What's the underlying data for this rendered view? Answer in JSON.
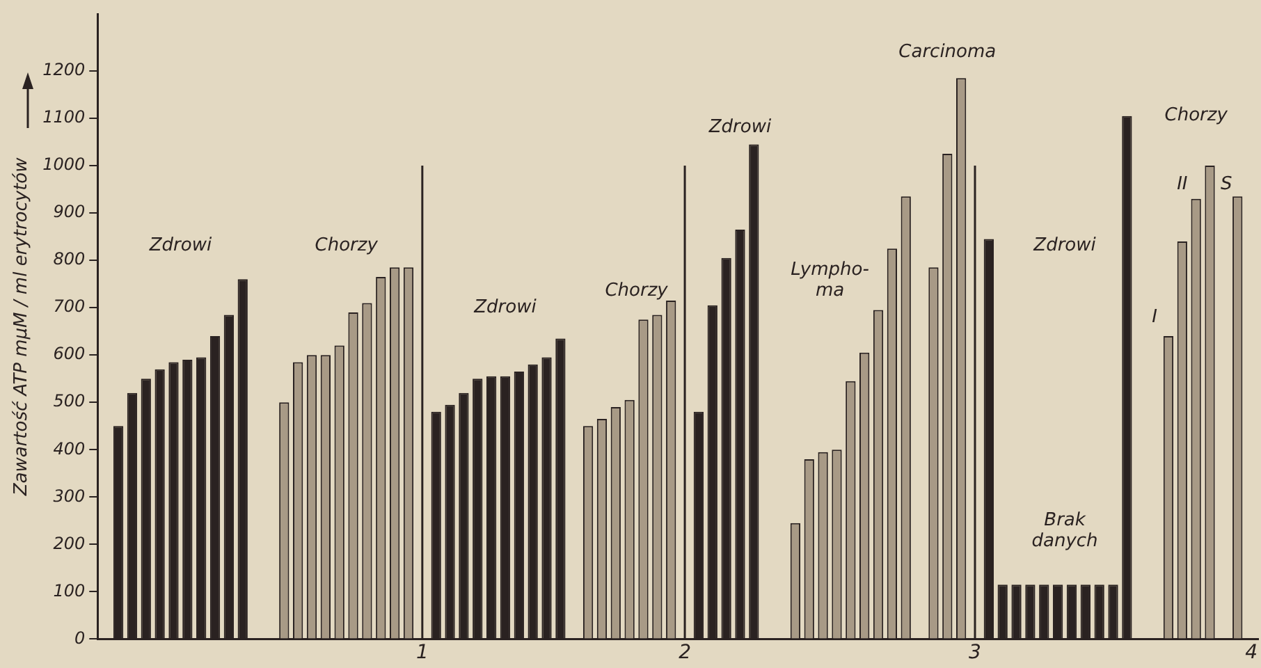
{
  "chart_data": {
    "type": "bar",
    "ylabel": "Zawartość ATP mμM / ml erytrocytów",
    "categories": [
      null,
      null,
      null,
      null,
      null,
      null,
      null,
      null,
      null,
      null,
      null,
      null,
      null,
      null,
      null,
      null,
      null,
      null,
      null,
      null,
      null,
      null,
      null,
      "1",
      null,
      null,
      null,
      null,
      null,
      null,
      null,
      null,
      null,
      null,
      null,
      null,
      null,
      null,
      null,
      null,
      null,
      null,
      "2",
      null,
      null,
      null,
      null,
      null,
      null,
      null,
      null,
      null,
      null,
      null,
      null,
      null,
      null,
      null,
      null,
      null,
      null,
      null,
      null,
      "3",
      null,
      null,
      null,
      null,
      null,
      null,
      null,
      null,
      null,
      null,
      null,
      null,
      null,
      null,
      null,
      null,
      null,
      null,
      null,
      "4"
    ],
    "series": [
      {
        "color": "#2a2221",
        "values": [
          null,
          450,
          520,
          550,
          570,
          585,
          590,
          595,
          640,
          685,
          760,
          null,
          null,
          null,
          null,
          null,
          null,
          null,
          null,
          null,
          null,
          null,
          null,
          null,
          480,
          495,
          520,
          550,
          555,
          555,
          565,
          580,
          595,
          635,
          null,
          null,
          null,
          null,
          null,
          null,
          null,
          null,
          null,
          480,
          705,
          805,
          865,
          1045,
          null,
          null,
          null,
          null,
          null,
          null,
          null,
          null,
          null,
          null,
          null,
          null,
          null,
          null,
          null,
          null,
          845,
          115,
          115,
          115,
          115,
          115,
          115,
          115,
          115,
          115,
          1105,
          null,
          null,
          null,
          null,
          null,
          null,
          null,
          null,
          null
        ]
      },
      {
        "color": "#a89a86",
        "values": [
          null,
          null,
          null,
          null,
          null,
          null,
          null,
          null,
          null,
          null,
          null,
          null,
          null,
          500,
          585,
          600,
          600,
          620,
          690,
          710,
          765,
          785,
          785,
          null,
          null,
          null,
          null,
          null,
          null,
          null,
          null,
          null,
          null,
          null,
          null,
          450,
          465,
          490,
          505,
          675,
          685,
          715,
          null,
          null,
          null,
          null,
          null,
          null,
          null,
          null,
          245,
          380,
          395,
          400,
          545,
          605,
          695,
          825,
          935,
          null,
          785,
          1025,
          1185,
          null,
          null,
          null,
          null,
          null,
          null,
          null,
          null,
          null,
          null,
          null,
          null,
          null,
          null,
          640,
          840,
          930,
          1000,
          null,
          935,
          null
        ]
      }
    ],
    "ylim": [
      0,
      1320
    ],
    "yticks": [
      0,
      100,
      200,
      300,
      400,
      500,
      600,
      700,
      800,
      900,
      1000,
      1100,
      1200
    ],
    "ref_lines": [
      {
        "axis": "x",
        "value": "1"
      },
      {
        "axis": "x",
        "value": "2"
      },
      {
        "axis": "x",
        "value": "3"
      }
    ],
    "annotations": [
      "Zdrowi",
      "Chorzy",
      "Zdrowi",
      "Chorzy",
      "Zdrowi",
      "Lympho-\nma",
      "Carcinoma",
      "Zdrowi",
      "Brak\ndanych",
      "Chorzy",
      "I",
      "II",
      "S"
    ]
  }
}
